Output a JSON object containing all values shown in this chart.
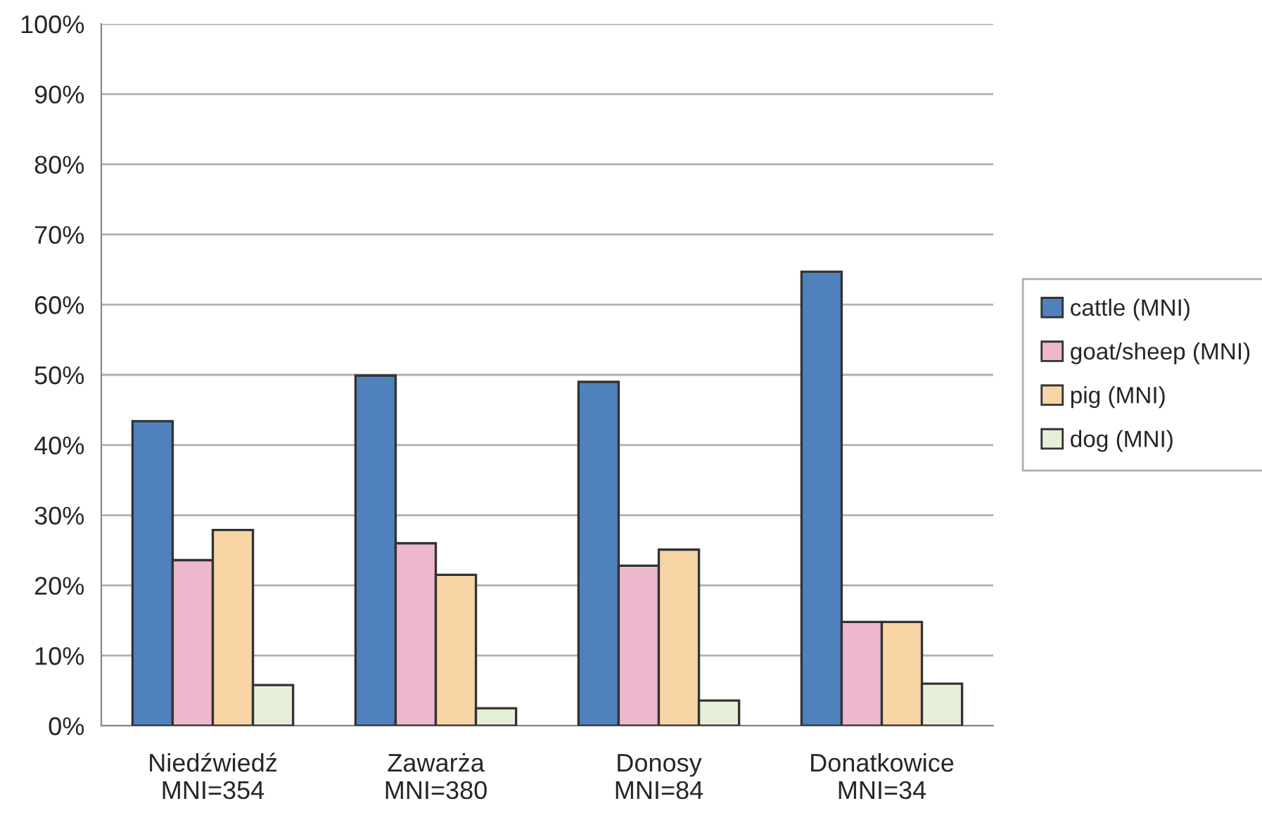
{
  "chart_data": {
    "type": "bar",
    "categories": [
      "Niedźwiedź\nMNI=354",
      "Zawarża\nMNI=380",
      "Donosy\nMNI=84",
      "Donatkowice\nMNI=34"
    ],
    "series": [
      {
        "name": "cattle (MNI)",
        "color": "#4f81bd",
        "values": [
          43.4,
          49.9,
          49.0,
          64.7
        ]
      },
      {
        "name": "goat/sheep (MNI)",
        "color": "#edb8cd",
        "values": [
          23.6,
          26.0,
          22.8,
          14.8
        ]
      },
      {
        "name": "pig (MNI)",
        "color": "#f7d5a5",
        "values": [
          27.9,
          21.5,
          25.1,
          14.8
        ]
      },
      {
        "name": "dog (MNI)",
        "color": "#e6f0d8",
        "values": [
          5.8,
          2.5,
          3.6,
          6.0
        ]
      }
    ],
    "ylim": [
      0,
      100
    ],
    "yticks": [
      {
        "value": 0,
        "label": "0%"
      },
      {
        "value": 10,
        "label": "10%"
      },
      {
        "value": 20,
        "label": "20%"
      },
      {
        "value": 30,
        "label": "30%"
      },
      {
        "value": 40,
        "label": "40%"
      },
      {
        "value": 50,
        "label": "50%"
      },
      {
        "value": 60,
        "label": "60%"
      },
      {
        "value": 70,
        "label": "70%"
      },
      {
        "value": 80,
        "label": "80%"
      },
      {
        "value": 90,
        "label": "90%"
      },
      {
        "value": 100,
        "label": "100%"
      }
    ],
    "grid": "y",
    "legend": "right"
  }
}
